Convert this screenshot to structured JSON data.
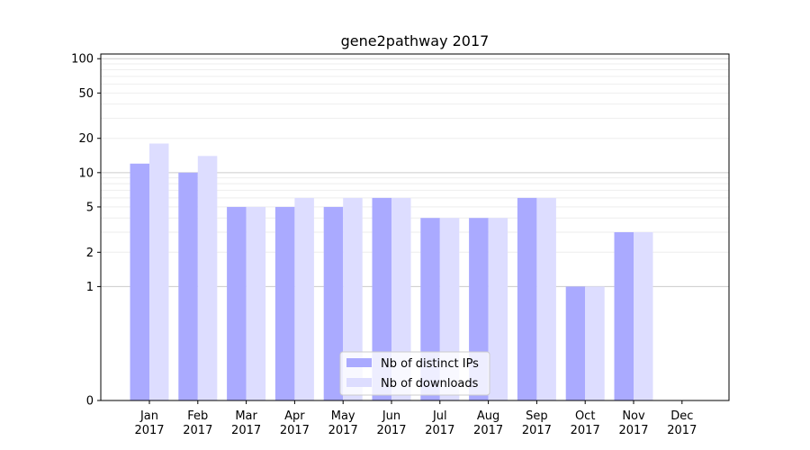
{
  "chart_data": {
    "type": "bar",
    "title": "gene2pathway 2017",
    "xlabel": "",
    "ylabel": "",
    "y_scale": "symlog",
    "ylim": [
      0,
      110
    ],
    "y_ticks": [
      0,
      1,
      2,
      5,
      10,
      20,
      50,
      100
    ],
    "y_tick_labels": [
      "0",
      "1",
      "2",
      "5",
      "10",
      "20",
      "50",
      "100"
    ],
    "categories": [
      "Jan",
      "Feb",
      "Mar",
      "Apr",
      "May",
      "Jun",
      "Jul",
      "Aug",
      "Sep",
      "Oct",
      "Nov",
      "Dec"
    ],
    "category_year": "2017",
    "series": [
      {
        "name": "Nb of distinct IPs",
        "color": "#aaaaff",
        "values": [
          12,
          10,
          5,
          5,
          5,
          6,
          4,
          4,
          6,
          1,
          3,
          0
        ]
      },
      {
        "name": "Nb of downloads",
        "color": "#ddddff",
        "values": [
          18,
          14,
          5,
          6,
          6,
          6,
          4,
          4,
          6,
          1,
          3,
          0
        ]
      }
    ],
    "grid": true,
    "legend_position": "lower-center"
  }
}
